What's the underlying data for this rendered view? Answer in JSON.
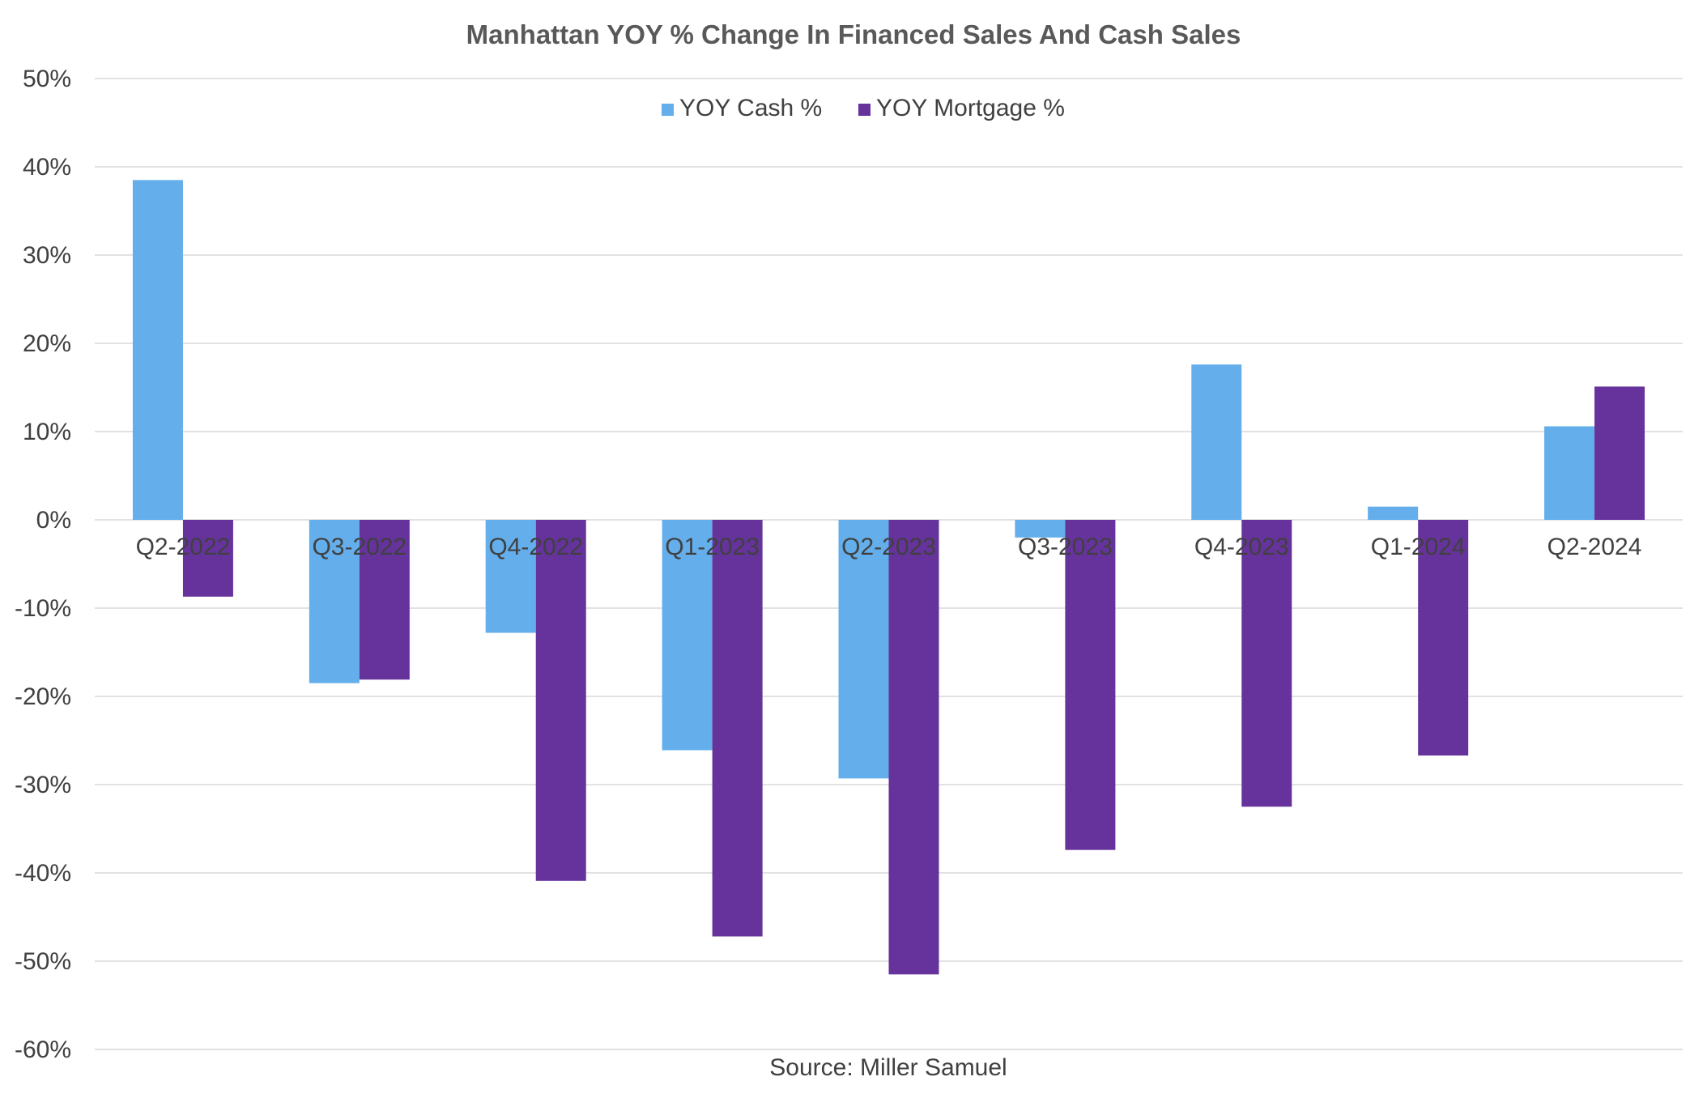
{
  "chart_data": {
    "type": "bar",
    "title": "Manhattan YOY % Change In Financed Sales And Cash Sales",
    "source": "Source: Miller Samuel",
    "categories": [
      "Q2-2022",
      "Q3-2022",
      "Q4-2022",
      "Q1-2023",
      "Q2-2023",
      "Q3-2023",
      "Q4-2023",
      "Q1-2024",
      "Q2-2024"
    ],
    "series": [
      {
        "name": "YOY Cash %",
        "color": "#63aeeb",
        "values": [
          38.5,
          -18.5,
          -12.8,
          -26.1,
          -29.3,
          -2.0,
          17.6,
          1.5,
          10.6
        ]
      },
      {
        "name": "YOY Mortgage %",
        "color": "#65339b",
        "values": [
          -8.7,
          -18.1,
          -40.9,
          -47.2,
          -51.5,
          -37.4,
          -32.5,
          -26.7,
          15.1
        ]
      }
    ],
    "ylim": [
      -60,
      50
    ],
    "yticks": [
      50,
      40,
      30,
      20,
      10,
      0,
      -10,
      -20,
      -30,
      -40,
      -50,
      -60
    ],
    "ytick_labels": [
      "50%",
      "40%",
      "30%",
      "20%",
      "10%",
      "0%",
      "-10%",
      "-20%",
      "-30%",
      "-40%",
      "-50%",
      "-60%"
    ],
    "xlabel": "",
    "ylabel": "",
    "grid": true,
    "legend_position": "top-center"
  }
}
